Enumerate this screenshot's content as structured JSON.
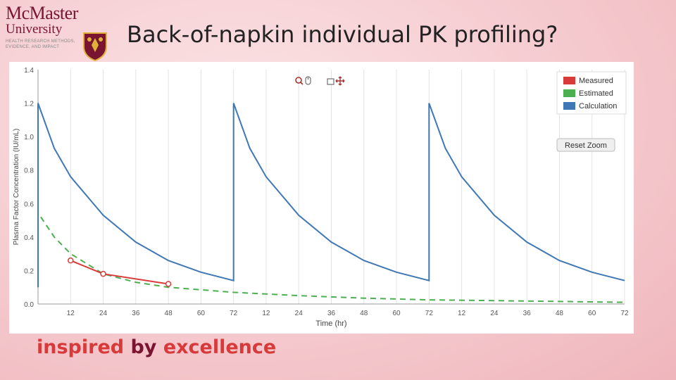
{
  "slide": {
    "title": "Back-of-napkin individual PK profiling?",
    "tagline_part1": "inspired ",
    "tagline_part2": "by ",
    "tagline_part3": "excellence"
  },
  "logo": {
    "name": "McMaster",
    "university": "University",
    "dept_line1": "HEALTH RESEARCH METHODS,",
    "dept_line2": "EVIDENCE, AND IMPACT"
  },
  "toolbar": {
    "icons": [
      "zoom-in-icon",
      "mouse-icon",
      "select-box-icon",
      "pan-move-icon"
    ]
  },
  "reset_zoom_label": "Reset Zoom",
  "colors": {
    "measured": "#d93a3a",
    "estimated": "#4caf50",
    "calculation": "#3f78b5",
    "brand": "#7a1531",
    "accent": "#d83a3a"
  },
  "chart_data": {
    "type": "line",
    "xlabel": "Time (hr)",
    "ylabel": "Plasma Factor Concentration (IU/mL)",
    "ylim": [
      0,
      1.4
    ],
    "xlim": [
      0,
      216
    ],
    "grid": "vertical",
    "legend_position": "top-right",
    "yticks": [
      "0.0",
      "0.2",
      "0.4",
      "0.6",
      "0.8",
      "1.0",
      "1.2",
      "1.4"
    ],
    "xticks": [
      {
        "t": 12,
        "label": "12"
      },
      {
        "t": 24,
        "label": "24"
      },
      {
        "t": 36,
        "label": "36"
      },
      {
        "t": 48,
        "label": "48"
      },
      {
        "t": 60,
        "label": "60"
      },
      {
        "t": 72,
        "label": "72"
      },
      {
        "t": 84,
        "label": "12"
      },
      {
        "t": 96,
        "label": "24"
      },
      {
        "t": 108,
        "label": "36"
      },
      {
        "t": 120,
        "label": "48"
      },
      {
        "t": 132,
        "label": "60"
      },
      {
        "t": 144,
        "label": "72"
      },
      {
        "t": 156,
        "label": "12"
      },
      {
        "t": 168,
        "label": "24"
      },
      {
        "t": 180,
        "label": "36"
      },
      {
        "t": 192,
        "label": "48"
      },
      {
        "t": 204,
        "label": "60"
      },
      {
        "t": 216,
        "label": "72"
      }
    ],
    "series": [
      {
        "name": "Measured",
        "style": "solid-markers",
        "x": [
          12,
          24,
          48
        ],
        "y": [
          0.26,
          0.18,
          0.12
        ]
      },
      {
        "name": "Estimated",
        "style": "dashed",
        "x": [
          1,
          6,
          12,
          24,
          36,
          48,
          72,
          96,
          120,
          144,
          168,
          192,
          216
        ],
        "y": [
          0.52,
          0.4,
          0.3,
          0.18,
          0.13,
          0.1,
          0.07,
          0.05,
          0.035,
          0.025,
          0.02,
          0.015,
          0.01
        ]
      },
      {
        "name": "Calculation",
        "style": "solid",
        "x": [
          0,
          0,
          6,
          12,
          24,
          36,
          48,
          60,
          72,
          72,
          78,
          84,
          96,
          108,
          120,
          132,
          144,
          144,
          150,
          156,
          168,
          180,
          192,
          204,
          216
        ],
        "y": [
          0.1,
          1.2,
          0.93,
          0.76,
          0.53,
          0.37,
          0.26,
          0.19,
          0.14,
          1.2,
          0.93,
          0.76,
          0.53,
          0.37,
          0.26,
          0.19,
          0.14,
          1.2,
          0.93,
          0.76,
          0.53,
          0.37,
          0.26,
          0.19,
          0.14
        ]
      }
    ]
  }
}
